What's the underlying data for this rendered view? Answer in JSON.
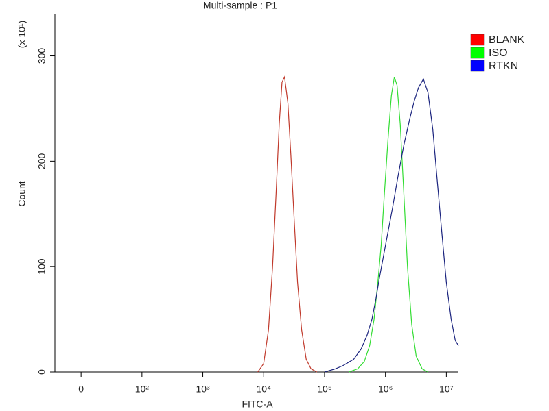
{
  "chart_data": {
    "type": "line",
    "title": "Multi-sample : P1",
    "xlabel": "FITC-A",
    "ylabel": "Count",
    "y_multiplier": "(x 10¹)",
    "xscale": "symlog",
    "linthresh": 100,
    "xlim": [
      -43,
      15800000
    ],
    "ylim": [
      0,
      340
    ],
    "xticks": [
      0,
      {
        "value": 100,
        "label": "10²"
      },
      {
        "value": 1000,
        "label": "10³"
      },
      {
        "value": 10000,
        "label": "10⁴"
      },
      {
        "value": 100000,
        "label": "10⁵"
      },
      {
        "value": 1000000,
        "label": "10⁶"
      },
      {
        "value": 10000000,
        "label": "10⁷"
      }
    ],
    "yticks": [
      0,
      100,
      200,
      300
    ],
    "legend": "upper-right",
    "series": [
      {
        "name": "BLANK",
        "color": "#c0392b",
        "legend_color": "#ff0000",
        "x": [
          8000,
          10000,
          12000,
          14000,
          16000,
          18000,
          20000,
          22000,
          25000,
          28000,
          32000,
          36000,
          42000,
          50000,
          60000,
          75000
        ],
        "values": [
          0,
          8,
          40,
          100,
          170,
          235,
          275,
          280,
          255,
          205,
          140,
          85,
          40,
          12,
          3,
          0
        ]
      },
      {
        "name": "ISO",
        "color": "#33dd33",
        "legend_color": "#00ff00",
        "x": [
          250000,
          350000,
          450000,
          550000,
          650000,
          750000,
          850000,
          950000,
          1100000,
          1250000,
          1400000,
          1550000,
          1750000,
          2000000,
          2300000,
          2700000,
          3200000,
          4000000,
          5000000
        ],
        "values": [
          0,
          3,
          10,
          25,
          50,
          85,
          120,
          165,
          220,
          262,
          280,
          272,
          235,
          170,
          100,
          45,
          15,
          3,
          0
        ]
      },
      {
        "name": "RTKN",
        "color": "#1a237e",
        "legend_color": "#0000ff",
        "x": [
          100000,
          150000,
          200000,
          300000,
          400000,
          500000,
          600000,
          700000,
          800000,
          1000000,
          1300000,
          1600000,
          2000000,
          2500000,
          3000000,
          3500000,
          4200000,
          5000000,
          6000000,
          7000000,
          8500000,
          10000000,
          12000000,
          14000000,
          15800000
        ],
        "values": [
          0,
          3,
          6,
          12,
          22,
          35,
          50,
          70,
          90,
          120,
          155,
          185,
          215,
          240,
          258,
          270,
          278,
          265,
          230,
          185,
          130,
          85,
          50,
          30,
          25
        ]
      }
    ]
  }
}
